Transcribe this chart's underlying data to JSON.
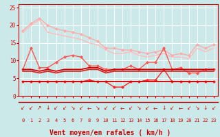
{
  "background_color": "#cce9e9",
  "grid_color": "#ffffff",
  "xlabel": "Vent moyen/en rafales ( km/h )",
  "xlabel_color": "#cc0000",
  "xlabel_fontsize": 7,
  "tick_color": "#cc0000",
  "ylim": [
    0,
    26
  ],
  "yticks": [
    0,
    5,
    10,
    15,
    20,
    25
  ],
  "xlim": [
    -0.5,
    23.5
  ],
  "xticks": [
    0,
    1,
    2,
    3,
    4,
    5,
    6,
    7,
    8,
    9,
    10,
    11,
    12,
    13,
    14,
    15,
    16,
    17,
    18,
    19,
    20,
    21,
    22,
    23
  ],
  "lines": [
    {
      "x": [
        0,
        1,
        2,
        3,
        4,
        5,
        6,
        7,
        8,
        9,
        10,
        11,
        12,
        13,
        14,
        15,
        16,
        17,
        18,
        19,
        20,
        21,
        22,
        23
      ],
      "y": [
        18.5,
        20.5,
        22.0,
        20.0,
        19.0,
        18.5,
        18.0,
        17.5,
        16.5,
        15.5,
        13.5,
        13.5,
        13.0,
        13.0,
        12.5,
        12.0,
        12.5,
        13.0,
        11.5,
        12.0,
        11.5,
        14.5,
        13.5,
        14.5
      ],
      "color": "#ffaaaa",
      "linewidth": 1.0,
      "marker": "D",
      "markersize": 2.0,
      "zorder": 2
    },
    {
      "x": [
        0,
        1,
        2,
        3,
        4,
        5,
        6,
        7,
        8,
        9,
        10,
        11,
        12,
        13,
        14,
        15,
        16,
        17,
        18,
        19,
        20,
        21,
        22,
        23
      ],
      "y": [
        18.0,
        20.0,
        21.5,
        18.0,
        17.5,
        17.0,
        16.5,
        16.0,
        15.0,
        14.5,
        13.0,
        12.0,
        12.0,
        12.5,
        11.5,
        11.0,
        11.5,
        12.0,
        11.0,
        11.0,
        10.5,
        13.5,
        12.5,
        13.5
      ],
      "color": "#ffbbbb",
      "linewidth": 1.0,
      "marker": null,
      "markersize": 0,
      "zorder": 2
    },
    {
      "x": [
        0,
        1,
        2,
        3,
        4,
        5,
        6,
        7,
        8,
        9,
        10,
        11,
        12,
        13,
        14,
        15,
        16,
        17,
        18,
        19,
        20,
        21,
        22,
        23
      ],
      "y": [
        7.5,
        13.5,
        8.0,
        8.0,
        9.5,
        11.0,
        11.5,
        11.0,
        8.5,
        8.5,
        7.5,
        7.5,
        7.5,
        8.5,
        7.5,
        9.5,
        9.5,
        13.5,
        7.5,
        8.0,
        6.5,
        6.5,
        7.5,
        7.5
      ],
      "color": "#ff5555",
      "linewidth": 1.0,
      "marker": "D",
      "markersize": 2.0,
      "zorder": 3
    },
    {
      "x": [
        0,
        1,
        2,
        3,
        4,
        5,
        6,
        7,
        8,
        9,
        10,
        11,
        12,
        13,
        14,
        15,
        16,
        17,
        18,
        19,
        20,
        21,
        22,
        23
      ],
      "y": [
        7.5,
        7.5,
        7.0,
        7.5,
        7.0,
        7.5,
        7.5,
        7.5,
        8.0,
        8.0,
        7.0,
        7.5,
        7.5,
        7.5,
        7.5,
        7.5,
        7.5,
        7.5,
        7.5,
        7.5,
        7.5,
        7.5,
        7.5,
        7.5
      ],
      "color": "#cc0000",
      "linewidth": 1.3,
      "marker": null,
      "zorder": 4
    },
    {
      "x": [
        0,
        1,
        2,
        3,
        4,
        5,
        6,
        7,
        8,
        9,
        10,
        11,
        12,
        13,
        14,
        15,
        16,
        17,
        18,
        19,
        20,
        21,
        22,
        23
      ],
      "y": [
        7.0,
        7.0,
        6.5,
        7.0,
        6.5,
        7.0,
        7.0,
        7.0,
        7.5,
        7.5,
        6.5,
        7.0,
        7.0,
        7.0,
        7.0,
        7.0,
        7.0,
        7.0,
        7.0,
        7.0,
        7.0,
        7.0,
        7.0,
        7.0
      ],
      "color": "#dd2222",
      "linewidth": 1.3,
      "marker": null,
      "zorder": 4
    },
    {
      "x": [
        0,
        1,
        2,
        3,
        4,
        5,
        6,
        7,
        8,
        9,
        10,
        11,
        12,
        13,
        14,
        15,
        16,
        17,
        18,
        19,
        20,
        21,
        22,
        23
      ],
      "y": [
        4.0,
        4.0,
        4.0,
        4.0,
        4.0,
        4.0,
        4.0,
        4.0,
        4.5,
        4.0,
        4.0,
        2.5,
        2.5,
        4.0,
        4.0,
        4.5,
        4.5,
        7.5,
        4.0,
        4.0,
        4.0,
        4.0,
        4.0,
        4.0
      ],
      "color": "#ff2222",
      "linewidth": 1.0,
      "marker": "D",
      "markersize": 2.0,
      "zorder": 3
    },
    {
      "x": [
        0,
        1,
        2,
        3,
        4,
        5,
        6,
        7,
        8,
        9,
        10,
        11,
        12,
        13,
        14,
        15,
        16,
        17,
        18,
        19,
        20,
        21,
        22,
        23
      ],
      "y": [
        4.0,
        4.0,
        4.0,
        4.0,
        4.0,
        4.0,
        4.0,
        4.0,
        4.0,
        4.0,
        4.0,
        4.0,
        4.0,
        4.0,
        4.0,
        4.0,
        4.0,
        4.0,
        4.0,
        4.0,
        4.0,
        4.0,
        4.0,
        4.0
      ],
      "color": "#cc0000",
      "linewidth": 1.3,
      "marker": null,
      "zorder": 4
    }
  ],
  "arrow_chars": [
    "↙",
    "↙",
    "↗",
    "↓",
    "↙",
    "↙",
    "↘",
    "↙",
    "←",
    "↘",
    "↙",
    "↙",
    "←",
    "↙",
    "↘",
    "↙",
    "←",
    "↓",
    "↙",
    "←",
    "↙",
    "↘",
    "↓",
    "↙"
  ],
  "arrow_color": "#cc0000",
  "arrow_size": 5.5
}
